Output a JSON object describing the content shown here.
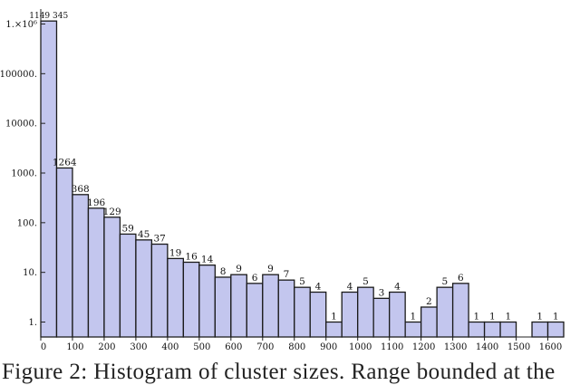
{
  "chart_data": {
    "type": "bar",
    "title": "",
    "xlabel": "",
    "ylabel": "",
    "y_scale": "log",
    "ylim": [
      0.5,
      2000000
    ],
    "xlim": [
      0,
      1650
    ],
    "bin_width": 50,
    "bin_starts": [
      0,
      50,
      100,
      150,
      200,
      250,
      300,
      350,
      400,
      450,
      500,
      550,
      600,
      650,
      700,
      750,
      800,
      850,
      900,
      950,
      1000,
      1050,
      1100,
      1150,
      1200,
      1250,
      1300,
      1350,
      1400,
      1450,
      1500,
      1550,
      1600
    ],
    "values": [
      1149345,
      1264,
      368,
      196,
      129,
      59,
      45,
      37,
      19,
      16,
      14,
      8,
      9,
      6,
      9,
      7,
      5,
      4,
      1,
      4,
      5,
      3,
      4,
      1,
      2,
      5,
      6,
      1,
      1,
      1,
      0,
      1,
      1
    ],
    "data_labels": [
      "1149 345",
      "1264",
      "368",
      "196",
      "129",
      "59",
      "45",
      "37",
      "19",
      "16",
      "14",
      "8",
      "9",
      "6",
      "9",
      "7",
      "5",
      "4",
      "1",
      "4",
      "5",
      "3",
      "4",
      "1",
      "2",
      "5",
      "6",
      "1",
      "1",
      "1",
      "",
      "1",
      "1"
    ],
    "y_ticks": [
      {
        "value": 1000000,
        "label": "1.×10⁶"
      },
      {
        "value": 100000,
        "label": "100000."
      },
      {
        "value": 10000,
        "label": "10000."
      },
      {
        "value": 1000,
        "label": "1000."
      },
      {
        "value": 100,
        "label": "100."
      },
      {
        "value": 10,
        "label": "10."
      },
      {
        "value": 1,
        "label": "1."
      }
    ],
    "x_ticks": [
      0,
      100,
      200,
      300,
      400,
      500,
      600,
      700,
      800,
      900,
      1000,
      1100,
      1200,
      1300,
      1400,
      1500,
      1600
    ],
    "bar_fill": "#c3c6ee",
    "bar_stroke": "#1a1a1a",
    "grid": false
  },
  "caption": "Figure 2: Histogram of cluster sizes. Range bounded at the"
}
